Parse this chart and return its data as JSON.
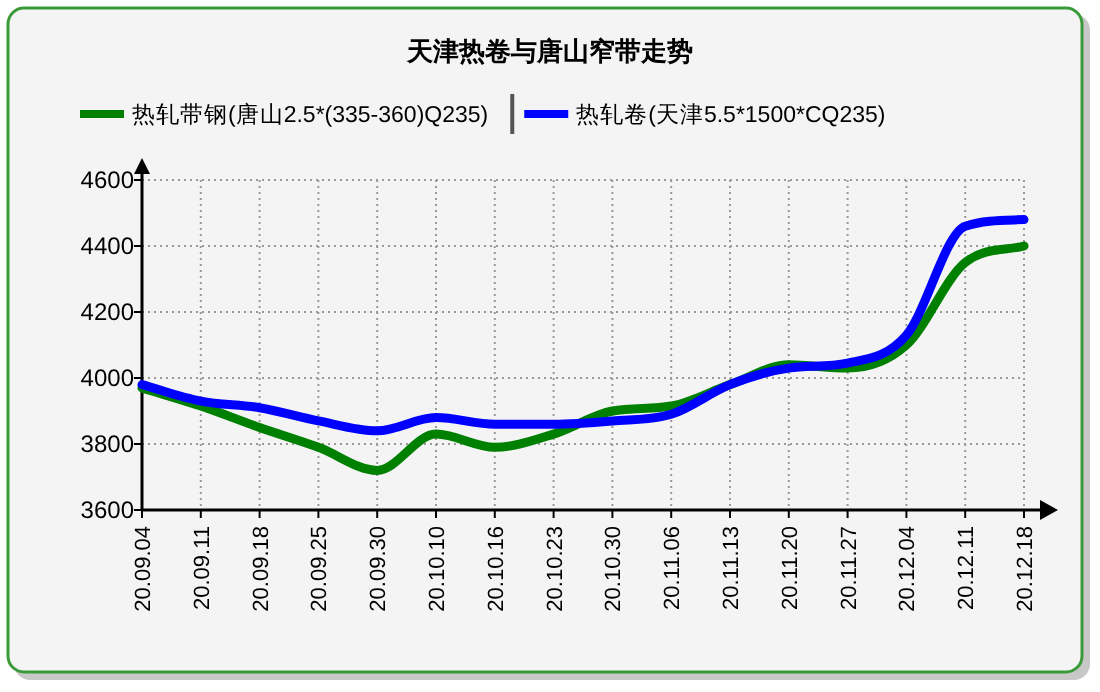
{
  "chart_data": {
    "type": "line",
    "title": "天津热卷与唐山窄带走势",
    "categories": [
      "20.09.04",
      "20.09.11",
      "20.09.18",
      "20.09.25",
      "20.09.30",
      "20.10.10",
      "20.10.16",
      "20.10.23",
      "20.10.30",
      "20.11.06",
      "20.11.13",
      "20.11.20",
      "20.11.27",
      "20.12.04",
      "20.12.11",
      "20.12.18"
    ],
    "series": [
      {
        "name": "热轧带钢(唐山2.5*(335-360)Q235)",
        "color": "#008000",
        "values": [
          3970,
          3915,
          3850,
          3790,
          3720,
          3830,
          3790,
          3830,
          3900,
          3915,
          3980,
          4040,
          4030,
          4100,
          4350,
          4400
        ]
      },
      {
        "name": "热轧卷(天津5.5*1500*CQ235)",
        "color": "#0000ff",
        "values": [
          3980,
          3930,
          3910,
          3870,
          3840,
          3880,
          3860,
          3860,
          3870,
          3890,
          3980,
          4030,
          4045,
          4130,
          4460,
          4480
        ]
      }
    ],
    "ylim": [
      3600,
      4600
    ],
    "yticks": [
      3600,
      3800,
      4000,
      4200,
      4400,
      4600
    ],
    "grid": true,
    "legend": "top",
    "marker": "none",
    "line_style": "solid"
  }
}
